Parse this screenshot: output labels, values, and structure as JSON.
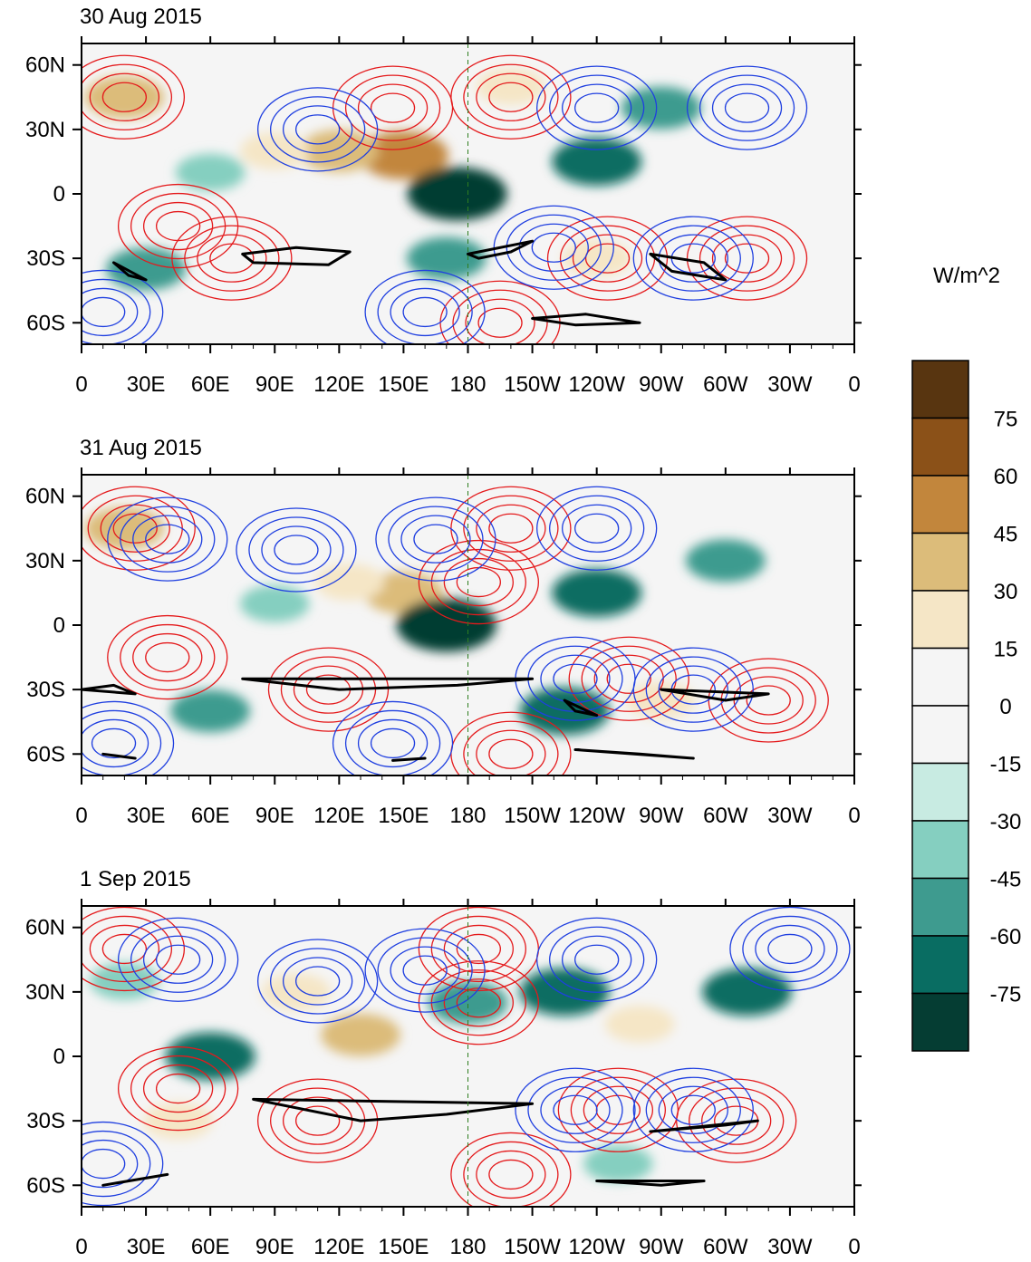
{
  "figure": {
    "panels": [
      {
        "title": "30 Aug 2015",
        "dateline_note": "180"
      },
      {
        "title": "31 Aug 2015",
        "dateline_note": "180"
      },
      {
        "title": "1 Sep 2015",
        "dateline_note": "180"
      }
    ],
    "lon_labels": [
      "0",
      "30E",
      "60E",
      "90E",
      "120E",
      "150E",
      "180",
      "150W",
      "120W",
      "90W",
      "60W",
      "30W",
      "0"
    ],
    "lat_labels": [
      "60N",
      "30N",
      "0",
      "30S",
      "60S"
    ],
    "colorbar": {
      "unit": "W/m^2",
      "labels": [
        "75",
        "60",
        "45",
        "30",
        "15",
        "0",
        "-15",
        "-30",
        "-45",
        "-60",
        "-75"
      ],
      "colors": [
        "#583510",
        "#8b5118",
        "#c2863c",
        "#dcbc7a",
        "#f5e6c6",
        "#f5f5f5",
        "#f5f5f5",
        "#c8ebe2",
        "#85cfc0",
        "#3e9b8f",
        "#096d62",
        "#053d33"
      ]
    },
    "contour_colors": {
      "positive": "#e41a1c",
      "negative": "#1f3fe0",
      "zero_line": "#000000",
      "coast": "#2e7d1f"
    }
  },
  "chart_data": {
    "type": "heatmap",
    "variable": "shaded anomaly (W/m^2) with overlaid red/blue contours and black thick contour",
    "x_range": [
      "0",
      "0"
    ],
    "y_range": [
      "70S",
      "70N"
    ],
    "panels": [
      {
        "title": "30 Aug 2015",
        "shade_blobs": [
          {
            "lon": 150,
            "lat": 18,
            "value": 60
          },
          {
            "lon": 120,
            "lat": 20,
            "value": 45
          },
          {
            "lon": 175,
            "lat": 0,
            "value": -75
          },
          {
            "lon": 200,
            "lat": 50,
            "value": 30
          },
          {
            "lon": 270,
            "lat": 40,
            "value": -45
          },
          {
            "lon": 240,
            "lat": 15,
            "value": -60
          },
          {
            "lon": 20,
            "lat": 45,
            "value": 45
          },
          {
            "lon": 60,
            "lat": 10,
            "value": -30
          },
          {
            "lon": 240,
            "lat": -30,
            "value": 30
          },
          {
            "lon": 30,
            "lat": -35,
            "value": -45
          },
          {
            "lon": 170,
            "lat": -30,
            "value": -45
          },
          {
            "lon": 90,
            "lat": 20,
            "value": 30
          }
        ],
        "pos_centers": [
          {
            "lon": 20,
            "lat": 45
          },
          {
            "lon": 145,
            "lat": 40
          },
          {
            "lon": 200,
            "lat": 45
          },
          {
            "lon": 45,
            "lat": -15
          },
          {
            "lon": 245,
            "lat": -30
          },
          {
            "lon": 195,
            "lat": -60
          },
          {
            "lon": 70,
            "lat": -30
          },
          {
            "lon": 310,
            "lat": -30
          }
        ],
        "neg_centers": [
          {
            "lon": 110,
            "lat": 30
          },
          {
            "lon": 240,
            "lat": 40
          },
          {
            "lon": 220,
            "lat": -25
          },
          {
            "lon": 285,
            "lat": -30
          },
          {
            "lon": 160,
            "lat": -55
          },
          {
            "lon": 10,
            "lat": -55
          },
          {
            "lon": 310,
            "lat": 40
          }
        ],
        "black_lines": [
          [
            [
              75,
              -28
            ],
            [
              100,
              -25
            ],
            [
              125,
              -27
            ],
            [
              115,
              -33
            ],
            [
              80,
              -32
            ]
          ],
          [
            [
              180,
              -28
            ],
            [
              210,
              -22
            ],
            [
              200,
              -27
            ],
            [
              185,
              -30
            ]
          ],
          [
            [
              210,
              -58
            ],
            [
              235,
              -56
            ],
            [
              260,
              -60
            ],
            [
              230,
              -61
            ]
          ],
          [
            [
              265,
              -28
            ],
            [
              290,
              -32
            ],
            [
              300,
              -40
            ],
            [
              275,
              -36
            ]
          ],
          [
            [
              15,
              -32
            ],
            [
              30,
              -40
            ],
            [
              22,
              -38
            ]
          ]
        ]
      },
      {
        "title": "31 Aug 2015",
        "shade_blobs": [
          {
            "lon": 150,
            "lat": 15,
            "value": 45
          },
          {
            "lon": 125,
            "lat": 20,
            "value": 30
          },
          {
            "lon": 170,
            "lat": 0,
            "value": -75
          },
          {
            "lon": 20,
            "lat": 45,
            "value": 45
          },
          {
            "lon": 240,
            "lat": 15,
            "value": -60
          },
          {
            "lon": 60,
            "lat": -40,
            "value": -45
          },
          {
            "lon": 300,
            "lat": 30,
            "value": -45
          },
          {
            "lon": 270,
            "lat": -35,
            "value": 30
          },
          {
            "lon": 225,
            "lat": -40,
            "value": -60
          },
          {
            "lon": 90,
            "lat": 10,
            "value": -30
          }
        ],
        "pos_centers": [
          {
            "lon": 25,
            "lat": 45
          },
          {
            "lon": 200,
            "lat": 45
          },
          {
            "lon": 185,
            "lat": 20
          },
          {
            "lon": 40,
            "lat": -15
          },
          {
            "lon": 115,
            "lat": -30
          },
          {
            "lon": 255,
            "lat": -25
          },
          {
            "lon": 200,
            "lat": -60
          },
          {
            "lon": 320,
            "lat": -35
          }
        ],
        "neg_centers": [
          {
            "lon": 40,
            "lat": 40
          },
          {
            "lon": 100,
            "lat": 35
          },
          {
            "lon": 165,
            "lat": 40
          },
          {
            "lon": 240,
            "lat": 45
          },
          {
            "lon": 230,
            "lat": -25
          },
          {
            "lon": 285,
            "lat": -30
          },
          {
            "lon": 15,
            "lat": -55
          },
          {
            "lon": 145,
            "lat": -55
          }
        ],
        "black_lines": [
          [
            [
              0,
              -30
            ],
            [
              15,
              -28
            ],
            [
              25,
              -32
            ]
          ],
          [
            [
              75,
              -25
            ],
            [
              120,
              -30
            ],
            [
              175,
              -28
            ],
            [
              210,
              -25
            ]
          ],
          [
            [
              225,
              -35
            ],
            [
              240,
              -42
            ],
            [
              230,
              -40
            ]
          ],
          [
            [
              230,
              -58
            ],
            [
              260,
              -60
            ],
            [
              285,
              -62
            ]
          ],
          [
            [
              270,
              -30
            ],
            [
              300,
              -35
            ],
            [
              320,
              -32
            ]
          ],
          [
            [
              10,
              -60
            ],
            [
              25,
              -62
            ]
          ],
          [
            [
              145,
              -63
            ],
            [
              160,
              -62
            ]
          ]
        ]
      },
      {
        "title": "1 Sep 2015",
        "shade_blobs": [
          {
            "lon": 130,
            "lat": 10,
            "value": 45
          },
          {
            "lon": 100,
            "lat": 30,
            "value": 30
          },
          {
            "lon": 60,
            "lat": 0,
            "value": -60
          },
          {
            "lon": 180,
            "lat": 25,
            "value": -45
          },
          {
            "lon": 225,
            "lat": 30,
            "value": -60
          },
          {
            "lon": 20,
            "lat": 35,
            "value": -30
          },
          {
            "lon": 260,
            "lat": 15,
            "value": 30
          },
          {
            "lon": 310,
            "lat": 30,
            "value": -60
          },
          {
            "lon": 250,
            "lat": -50,
            "value": -30
          },
          {
            "lon": 45,
            "lat": -30,
            "value": 30
          }
        ],
        "pos_centers": [
          {
            "lon": 20,
            "lat": 50
          },
          {
            "lon": 185,
            "lat": 50
          },
          {
            "lon": 185,
            "lat": 25
          },
          {
            "lon": 45,
            "lat": -15
          },
          {
            "lon": 110,
            "lat": -30
          },
          {
            "lon": 250,
            "lat": -25
          },
          {
            "lon": 200,
            "lat": -55
          },
          {
            "lon": 305,
            "lat": -30
          }
        ],
        "neg_centers": [
          {
            "lon": 45,
            "lat": 45
          },
          {
            "lon": 110,
            "lat": 35
          },
          {
            "lon": 160,
            "lat": 40
          },
          {
            "lon": 240,
            "lat": 45
          },
          {
            "lon": 230,
            "lat": -25
          },
          {
            "lon": 285,
            "lat": -25
          },
          {
            "lon": 10,
            "lat": -50
          },
          {
            "lon": 330,
            "lat": 50
          }
        ],
        "black_lines": [
          [
            [
              80,
              -20
            ],
            [
              130,
              -30
            ],
            [
              170,
              -27
            ],
            [
              210,
              -22
            ]
          ],
          [
            [
              265,
              -35
            ],
            [
              300,
              -32
            ],
            [
              315,
              -30
            ]
          ],
          [
            [
              240,
              -58
            ],
            [
              270,
              -60
            ],
            [
              290,
              -58
            ]
          ],
          [
            [
              10,
              -60
            ],
            [
              40,
              -55
            ]
          ]
        ]
      }
    ]
  }
}
